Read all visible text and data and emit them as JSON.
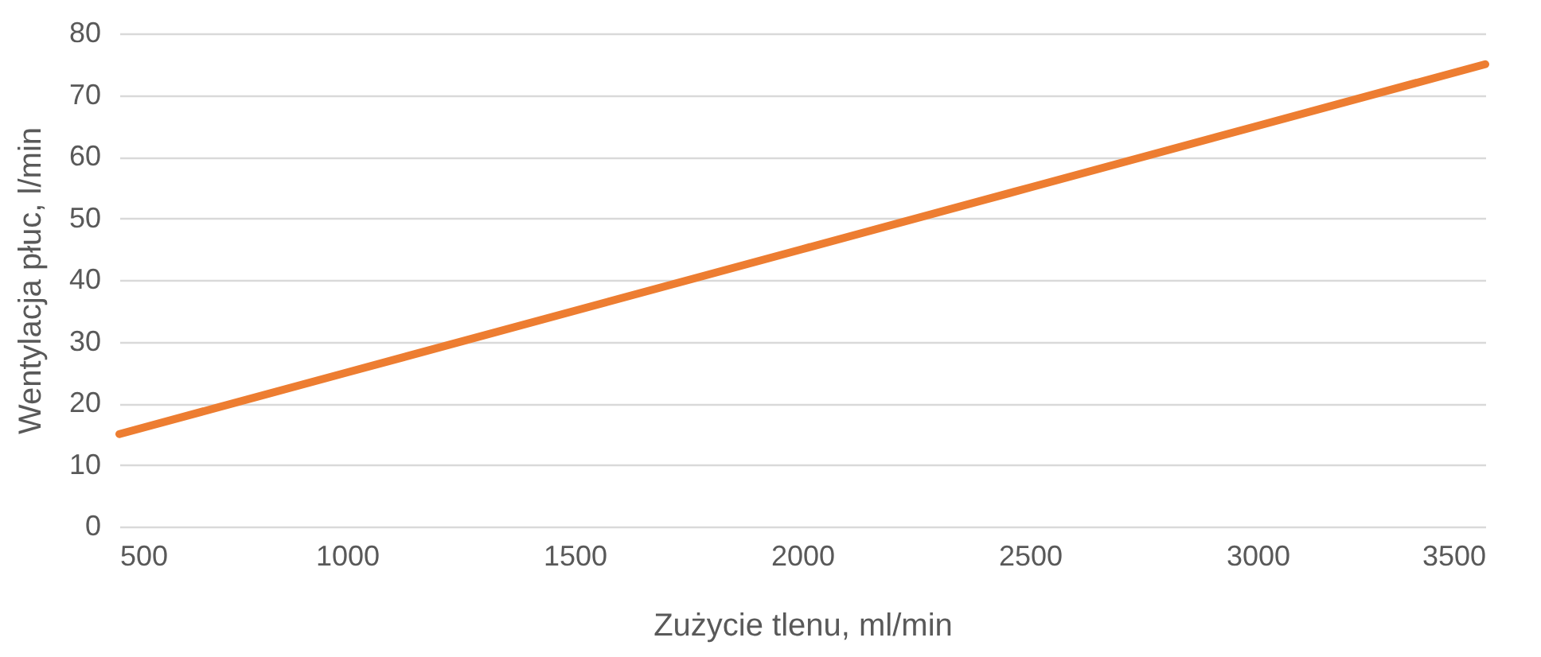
{
  "chart_data": {
    "type": "line",
    "xlabel": "Zużycie tlenu, ml/min",
    "ylabel": "Wentylacja płuc, l/min",
    "x": [
      500,
      1000,
      1500,
      2000,
      2500,
      3000,
      3500
    ],
    "series": [
      {
        "color": "#ed7d31",
        "values": [
          15,
          25,
          35,
          45,
          55,
          65,
          75
        ]
      }
    ],
    "xlim": [
      500,
      3500
    ],
    "xticks": [
      500,
      1000,
      1500,
      2000,
      2500,
      3000,
      3500
    ],
    "ylim": [
      0,
      80
    ],
    "yticks": [
      0,
      10,
      20,
      30,
      40,
      50,
      60,
      70,
      80
    ],
    "grid": "y",
    "marker": "none",
    "line_style": "solid",
    "legend": false
  }
}
